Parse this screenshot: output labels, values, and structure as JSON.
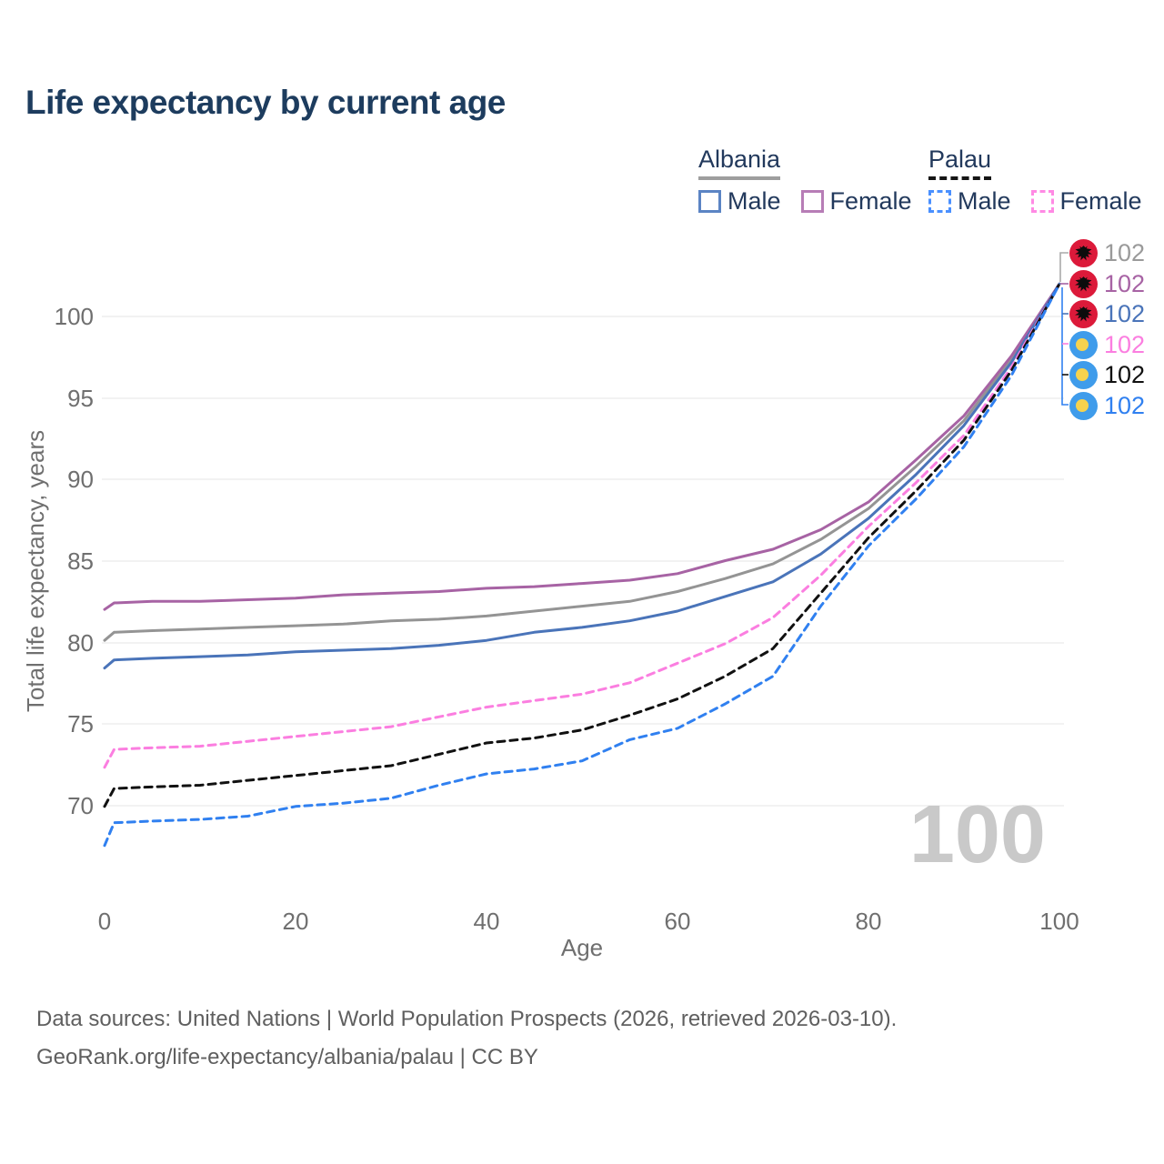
{
  "title": "Life expectancy by current age",
  "legend": {
    "groups": [
      {
        "label": "Albania",
        "underline_color": "#9e9e9e",
        "underline_style": "solid",
        "items": [
          {
            "label": "Male",
            "color": "#5b84c4",
            "box_style": "solid"
          },
          {
            "label": "Female",
            "color": "#b77db6",
            "box_style": "solid"
          }
        ]
      },
      {
        "label": "Palau",
        "underline_color": "#151515",
        "underline_style": "dashed",
        "items": [
          {
            "label": "Male",
            "color": "#4a90ff",
            "box_style": "dashed"
          },
          {
            "label": "Female",
            "color": "#ff8ae4",
            "box_style": "dashed"
          }
        ]
      }
    ]
  },
  "hover_age": "100",
  "end_labels": [
    {
      "series": "Albania",
      "flag": "albania",
      "value": "102",
      "color": "#9a9a9a"
    },
    {
      "series": "Albania Female",
      "flag": "albania",
      "value": "102",
      "color": "#a763a4"
    },
    {
      "series": "Albania Male",
      "flag": "albania",
      "value": "102",
      "color": "#4a74b9"
    },
    {
      "series": "Palau Female",
      "flag": "palau",
      "value": "102",
      "color": "#fb7ee0"
    },
    {
      "series": "Palau",
      "flag": "palau",
      "value": "102",
      "color": "#111111"
    },
    {
      "series": "Palau Male",
      "flag": "palau",
      "value": "102",
      "color": "#3080f0"
    }
  ],
  "footer": {
    "line1": "Data sources: United Nations | World Population Prospects (2026, retrieved 2026-03-10).",
    "line2": "GeoRank.org/life-expectancy/albania/palau | CC BY"
  },
  "chart_data": {
    "type": "line",
    "title": "Life expectancy by current age",
    "xlabel": "Age",
    "ylabel": "Total life expectancy, years",
    "x_ticks": [
      0,
      20,
      40,
      60,
      80,
      100
    ],
    "y_ticks": [
      70,
      75,
      80,
      85,
      90,
      95,
      100
    ],
    "xlim": [
      0,
      100
    ],
    "ylim": [
      66.5,
      102.5
    ],
    "grid": true,
    "legend_position": "top-right",
    "x": [
      0,
      1,
      5,
      10,
      15,
      20,
      25,
      30,
      35,
      40,
      45,
      50,
      55,
      60,
      65,
      70,
      75,
      80,
      85,
      90,
      95,
      100
    ],
    "series": [
      {
        "name": "Albania",
        "country": "Albania",
        "sex": "both",
        "style": "solid",
        "color": "#949494",
        "values": [
          80.1,
          80.6,
          80.7,
          80.8,
          80.9,
          81.0,
          81.1,
          81.3,
          81.4,
          81.6,
          81.9,
          82.2,
          82.5,
          83.1,
          83.9,
          84.8,
          86.3,
          88.2,
          90.8,
          93.6,
          97.4,
          102
        ]
      },
      {
        "name": "Albania Female",
        "country": "Albania",
        "sex": "female",
        "style": "solid",
        "color": "#a763a4",
        "values": [
          82.0,
          82.4,
          82.5,
          82.5,
          82.6,
          82.7,
          82.9,
          83.0,
          83.1,
          83.3,
          83.4,
          83.6,
          83.8,
          84.2,
          85.0,
          85.7,
          86.9,
          88.6,
          91.2,
          93.9,
          97.6,
          102
        ]
      },
      {
        "name": "Albania Male",
        "country": "Albania",
        "sex": "male",
        "style": "solid",
        "color": "#4a74b9",
        "values": [
          78.4,
          78.9,
          79.0,
          79.1,
          79.2,
          79.4,
          79.5,
          79.6,
          79.8,
          80.1,
          80.6,
          80.9,
          81.3,
          81.9,
          82.8,
          83.7,
          85.4,
          87.6,
          90.3,
          93.3,
          97.2,
          102
        ]
      },
      {
        "name": "Palau Female",
        "country": "Palau",
        "sex": "female",
        "style": "dashed",
        "color": "#fb7ee0",
        "values": [
          72.3,
          73.4,
          73.5,
          73.6,
          73.9,
          74.2,
          74.5,
          74.8,
          75.4,
          76.0,
          76.4,
          76.8,
          77.5,
          78.7,
          79.9,
          81.5,
          84.1,
          87.1,
          89.8,
          92.7,
          96.9,
          102
        ]
      },
      {
        "name": "Palau",
        "country": "Palau",
        "sex": "both",
        "style": "dashed",
        "color": "#111111",
        "values": [
          69.9,
          71.0,
          71.1,
          71.2,
          71.5,
          71.8,
          72.1,
          72.4,
          73.1,
          73.8,
          74.1,
          74.6,
          75.5,
          76.5,
          77.9,
          79.6,
          83.0,
          86.4,
          89.3,
          92.4,
          96.7,
          102
        ]
      },
      {
        "name": "Palau Male",
        "country": "Palau",
        "sex": "male",
        "style": "dashed",
        "color": "#3080f0",
        "values": [
          67.5,
          68.9,
          69.0,
          69.1,
          69.3,
          69.9,
          70.1,
          70.4,
          71.2,
          71.9,
          72.2,
          72.7,
          74.0,
          74.7,
          76.2,
          77.9,
          82.2,
          85.9,
          88.8,
          92.0,
          96.4,
          102
        ]
      }
    ],
    "end_value_labels": [
      "102",
      "102",
      "102",
      "102",
      "102",
      "102"
    ]
  }
}
